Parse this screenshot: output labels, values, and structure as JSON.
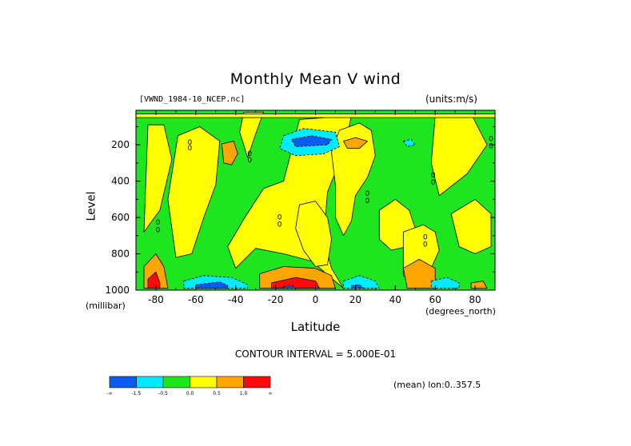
{
  "chart_data": {
    "type": "heatmap",
    "title": "Monthly Mean V wind",
    "file_label": "[VWND_1984-10_NCEP.nc]",
    "units_label": "(units:m/s)",
    "xlabel": "Latitude",
    "x_units": "(degrees_north)",
    "ylabel": "Level",
    "y_units": "(millibar)",
    "xlim": [
      -90,
      90
    ],
    "ylim": [
      1000,
      10
    ],
    "x_ticks": [
      {
        "value": -80,
        "label": "-80"
      },
      {
        "value": -60,
        "label": "-60"
      },
      {
        "value": -40,
        "label": "-40"
      },
      {
        "value": -20,
        "label": "-20"
      },
      {
        "value": 0,
        "label": "0"
      },
      {
        "value": 20,
        "label": "20"
      },
      {
        "value": 40,
        "label": "40"
      },
      {
        "value": 60,
        "label": "60"
      },
      {
        "value": 80,
        "label": "80"
      }
    ],
    "y_ticks": [
      {
        "value": 200,
        "label": "200"
      },
      {
        "value": 400,
        "label": "400"
      },
      {
        "value": 600,
        "label": "600"
      },
      {
        "value": 800,
        "label": "800"
      },
      {
        "value": 1000,
        "label": "1000"
      }
    ],
    "contour_interval": "CONTOUR INTERVAL = 5.000E-01",
    "stat_label": "(mean) lon:0..357.5",
    "colorbar": {
      "colors": [
        "#0a5cf0",
        "#00ebff",
        "#1ee61e",
        "#ffff00",
        "#ffa500",
        "#ff0a0a"
      ],
      "labels": [
        "-∞",
        "-1.5",
        "-0.5",
        "0.0",
        "0.5",
        "1.0",
        "∞"
      ]
    },
    "background_class": 2,
    "regions": [
      {
        "cls": 3,
        "pts": [
          [
            -84,
            90
          ],
          [
            -76,
            90
          ],
          [
            -72,
            280
          ],
          [
            -78,
            560
          ],
          [
            -86,
            680
          ]
        ]
      },
      {
        "cls": 3,
        "pts": [
          [
            -69,
            150
          ],
          [
            -58,
            100
          ],
          [
            -48,
            180
          ],
          [
            -50,
            420
          ],
          [
            -56,
            600
          ],
          [
            -62,
            800
          ],
          [
            -70,
            820
          ],
          [
            -74,
            500
          ]
        ]
      },
      {
        "cls": 3,
        "pts": [
          [
            -36,
            20
          ],
          [
            -26,
            20
          ],
          [
            -30,
            140
          ],
          [
            -34,
            270
          ],
          [
            -38,
            130
          ]
        ]
      },
      {
        "cls": 3,
        "pts": [
          [
            -44,
            760
          ],
          [
            -36,
            610
          ],
          [
            -26,
            440
          ],
          [
            -16,
            400
          ],
          [
            -8,
            60
          ],
          [
            18,
            40
          ],
          [
            14,
            240
          ],
          [
            6,
            460
          ],
          [
            4,
            720
          ],
          [
            8,
            880
          ],
          [
            14,
            990
          ],
          [
            -2,
            840
          ],
          [
            -16,
            800
          ],
          [
            -30,
            770
          ],
          [
            -40,
            880
          ]
        ]
      },
      {
        "cls": 3,
        "pts": [
          [
            -8,
            530
          ],
          [
            0,
            510
          ],
          [
            6,
            600
          ],
          [
            8,
            720
          ],
          [
            6,
            860
          ],
          [
            0,
            870
          ],
          [
            -6,
            780
          ],
          [
            -10,
            660
          ]
        ]
      },
      {
        "cls": 3,
        "pts": [
          [
            12,
            120
          ],
          [
            22,
            80
          ],
          [
            28,
            120
          ],
          [
            30,
            260
          ],
          [
            26,
            380
          ],
          [
            20,
            480
          ],
          [
            18,
            620
          ],
          [
            14,
            700
          ],
          [
            10,
            600
          ],
          [
            10,
            420
          ],
          [
            8,
            240
          ]
        ]
      },
      {
        "cls": 3,
        "pts": [
          [
            32,
            560
          ],
          [
            40,
            500
          ],
          [
            47,
            560
          ],
          [
            50,
            660
          ],
          [
            46,
            760
          ],
          [
            38,
            780
          ],
          [
            32,
            720
          ]
        ]
      },
      {
        "cls": 3,
        "pts": [
          [
            44,
            680
          ],
          [
            54,
            640
          ],
          [
            60,
            680
          ],
          [
            62,
            780
          ],
          [
            58,
            880
          ],
          [
            50,
            960
          ],
          [
            44,
            920
          ]
        ]
      },
      {
        "cls": 3,
        "pts": [
          [
            60,
            40
          ],
          [
            78,
            30
          ],
          [
            86,
            200
          ],
          [
            76,
            360
          ],
          [
            62,
            480
          ],
          [
            58,
            300
          ]
        ]
      },
      {
        "cls": 3,
        "pts": [
          [
            68,
            580
          ],
          [
            80,
            500
          ],
          [
            88,
            580
          ],
          [
            88,
            760
          ],
          [
            80,
            800
          ],
          [
            72,
            760
          ]
        ]
      },
      {
        "cls": 3,
        "pts": [
          [
            -90,
            30
          ],
          [
            90,
            30
          ],
          [
            90,
            50
          ],
          [
            -90,
            50
          ]
        ]
      },
      {
        "cls": 4,
        "pts": [
          [
            -47,
            195
          ],
          [
            -41,
            180
          ],
          [
            -39,
            250
          ],
          [
            -42,
            310
          ],
          [
            -46,
            300
          ]
        ]
      },
      {
        "cls": 4,
        "pts": [
          [
            14,
            180
          ],
          [
            20,
            160
          ],
          [
            26,
            180
          ],
          [
            22,
            220
          ],
          [
            16,
            220
          ]
        ]
      },
      {
        "cls": 4,
        "pts": [
          [
            -28,
            910
          ],
          [
            -16,
            870
          ],
          [
            0,
            880
          ],
          [
            8,
            920
          ],
          [
            10,
            990
          ],
          [
            -28,
            990
          ]
        ]
      },
      {
        "cls": 4,
        "pts": [
          [
            44,
            880
          ],
          [
            52,
            830
          ],
          [
            60,
            880
          ],
          [
            60,
            990
          ],
          [
            46,
            990
          ]
        ]
      },
      {
        "cls": 4,
        "pts": [
          [
            -86,
            870
          ],
          [
            -80,
            800
          ],
          [
            -76,
            870
          ],
          [
            -74,
            990
          ],
          [
            -86,
            990
          ]
        ]
      },
      {
        "cls": 4,
        "pts": [
          [
            78,
            960
          ],
          [
            84,
            950
          ],
          [
            86,
            990
          ],
          [
            78,
            990
          ]
        ]
      },
      {
        "cls": 5,
        "pts": [
          [
            -22,
            960
          ],
          [
            -10,
            930
          ],
          [
            0,
            950
          ],
          [
            2,
            990
          ],
          [
            -22,
            990
          ]
        ]
      },
      {
        "cls": 5,
        "pts": [
          [
            -84,
            940
          ],
          [
            -80,
            900
          ],
          [
            -78,
            960
          ],
          [
            -78,
            990
          ],
          [
            -84,
            990
          ]
        ]
      },
      {
        "cls": 1,
        "pts": [
          [
            -16,
            150
          ],
          [
            -6,
            110
          ],
          [
            10,
            130
          ],
          [
            12,
            210
          ],
          [
            4,
            250
          ],
          [
            -10,
            260
          ],
          [
            -18,
            220
          ]
        ]
      },
      {
        "cls": 1,
        "pts": [
          [
            -66,
            950
          ],
          [
            -56,
            920
          ],
          [
            -42,
            930
          ],
          [
            -34,
            970
          ],
          [
            -34,
            990
          ],
          [
            -66,
            990
          ]
        ]
      },
      {
        "cls": 1,
        "pts": [
          [
            14,
            950
          ],
          [
            22,
            920
          ],
          [
            30,
            950
          ],
          [
            32,
            990
          ],
          [
            14,
            990
          ]
        ]
      },
      {
        "cls": 1,
        "pts": [
          [
            58,
            950
          ],
          [
            66,
            930
          ],
          [
            72,
            960
          ],
          [
            72,
            990
          ],
          [
            58,
            990
          ]
        ]
      },
      {
        "cls": 1,
        "pts": [
          [
            44,
            180
          ],
          [
            48,
            170
          ],
          [
            50,
            200
          ],
          [
            46,
            210
          ]
        ]
      },
      {
        "cls": 0,
        "pts": [
          [
            -12,
            170
          ],
          [
            -2,
            150
          ],
          [
            8,
            170
          ],
          [
            6,
            200
          ],
          [
            -10,
            210
          ]
        ]
      },
      {
        "cls": 0,
        "pts": [
          [
            -60,
            970
          ],
          [
            -48,
            955
          ],
          [
            -44,
            975
          ],
          [
            -44,
            990
          ],
          [
            -60,
            990
          ]
        ]
      },
      {
        "cls": 0,
        "pts": [
          [
            -16,
            980
          ],
          [
            -12,
            975
          ],
          [
            -10,
            990
          ],
          [
            -16,
            990
          ]
        ]
      },
      {
        "cls": 0,
        "pts": [
          [
            18,
            975
          ],
          [
            22,
            970
          ],
          [
            24,
            990
          ],
          [
            18,
            990
          ]
        ]
      }
    ],
    "contour_labels": [
      {
        "text": "0",
        "x": -63,
        "y": 200
      },
      {
        "text": "0",
        "x": -63,
        "y": 230
      },
      {
        "text": "0",
        "x": -33,
        "y": 260
      },
      {
        "text": "0",
        "x": -33,
        "y": 295
      },
      {
        "text": "0",
        "x": -18,
        "y": 610
      },
      {
        "text": "0",
        "x": -18,
        "y": 650
      },
      {
        "text": "0",
        "x": 26,
        "y": 480
      },
      {
        "text": "0",
        "x": 26,
        "y": 520
      },
      {
        "text": "0",
        "x": 59,
        "y": 380
      },
      {
        "text": "0",
        "x": 59,
        "y": 420
      },
      {
        "text": "0",
        "x": 55,
        "y": 720
      },
      {
        "text": "0",
        "x": 55,
        "y": 760
      },
      {
        "text": "0",
        "x": 88,
        "y": 180
      },
      {
        "text": "0",
        "x": 88,
        "y": 220
      },
      {
        "text": "0",
        "x": -79,
        "y": 640
      },
      {
        "text": "0",
        "x": -79,
        "y": 680
      }
    ]
  }
}
